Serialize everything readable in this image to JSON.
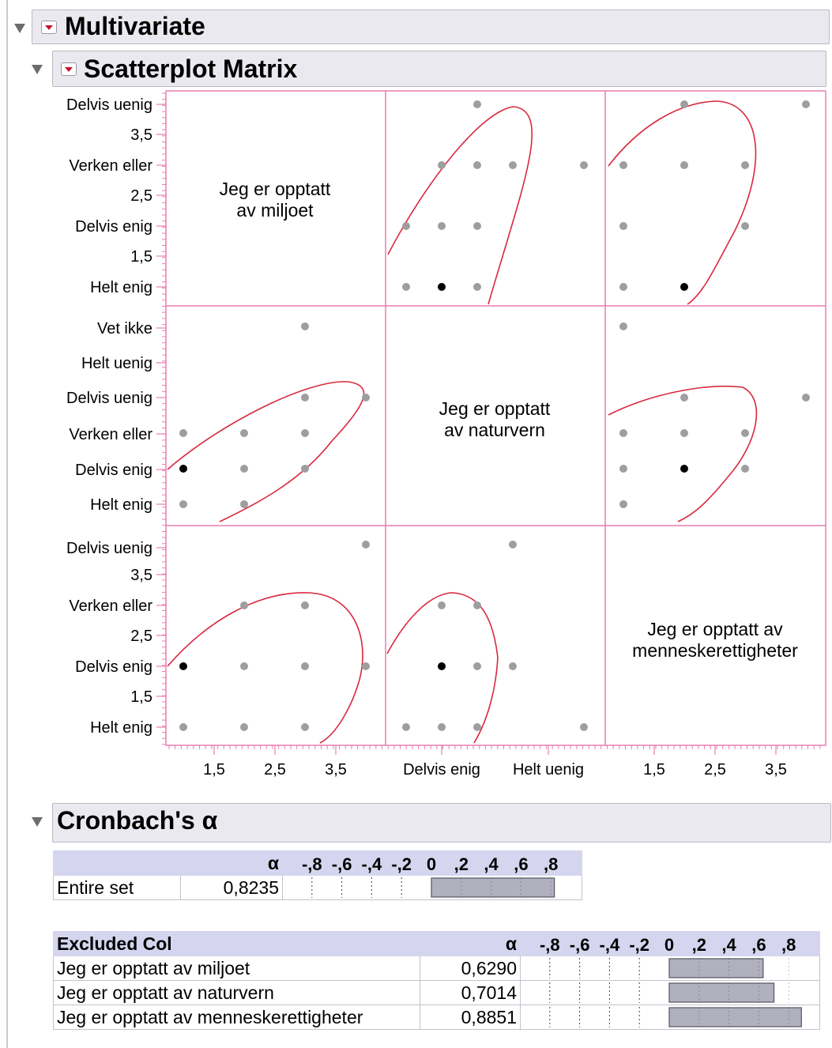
{
  "multivariate": {
    "title": "Multivariate"
  },
  "scatterplot": {
    "title": "Scatterplot Matrix",
    "variables": [
      "Jeg er opptatt av miljoet",
      "Jeg er opptatt av naturvern",
      "Jeg er opptatt av menneskerettigheter"
    ],
    "diag_labels": [
      [
        "Jeg er opptatt",
        "av miljoet"
      ],
      [
        "Jeg er opptatt",
        "av naturvern"
      ],
      [
        "Jeg er opptatt av",
        "menneskerettigheter"
      ]
    ],
    "row_ticks": [
      [
        "Delvis uenig",
        "3,5",
        "Verken eller",
        "2,5",
        "Delvis enig",
        "1,5",
        "Helt enig"
      ],
      [
        "Vet ikke",
        "Helt uenig",
        "Delvis uenig",
        "Verken eller",
        "Delvis enig",
        "Helt enig"
      ],
      [
        "Delvis uenig",
        "3,5",
        "Verken eller",
        "2,5",
        "Delvis enig",
        "1,5",
        "Helt enig"
      ]
    ],
    "col_ticks": [
      [
        "1,5",
        "2,5",
        "3,5"
      ],
      [
        "Delvis enig",
        "Helt uenig"
      ],
      [
        "1,5",
        "2,5",
        "3,5"
      ]
    ],
    "colors": {
      "grid": "#e87fb0",
      "ellipse": "#d9283d",
      "point": "#9e9e9e",
      "point_dark": "#000000"
    }
  },
  "chart_data": {
    "type": "scatter",
    "cells": [
      {
        "row": 0,
        "col": 1,
        "points": [
          [
            1,
            1
          ],
          [
            2,
            1
          ],
          [
            3,
            1
          ],
          [
            1,
            2
          ],
          [
            2,
            2
          ],
          [
            3,
            2
          ],
          [
            2,
            3
          ],
          [
            3,
            3
          ],
          [
            4,
            3
          ],
          [
            5,
            3
          ],
          [
            3,
            4
          ]
        ],
        "dark": [
          [
            2,
            1
          ]
        ]
      },
      {
        "row": 0,
        "col": 2,
        "points": [
          [
            1,
            1
          ],
          [
            2,
            1
          ],
          [
            1,
            2
          ],
          [
            3,
            2
          ],
          [
            1,
            3
          ],
          [
            2,
            3
          ],
          [
            3,
            3
          ],
          [
            2,
            4
          ],
          [
            4,
            4
          ]
        ],
        "dark": [
          [
            2,
            1
          ]
        ]
      },
      {
        "row": 1,
        "col": 0,
        "points": [
          [
            1,
            1
          ],
          [
            2,
            1
          ],
          [
            1,
            2
          ],
          [
            2,
            2
          ],
          [
            3,
            2
          ],
          [
            1,
            3
          ],
          [
            2,
            3
          ],
          [
            3,
            3
          ],
          [
            3,
            4
          ],
          [
            4,
            4
          ],
          [
            3,
            6
          ]
        ],
        "dark": [
          [
            1,
            2
          ]
        ]
      },
      {
        "row": 1,
        "col": 2,
        "points": [
          [
            1,
            1
          ],
          [
            1,
            2
          ],
          [
            2,
            2
          ],
          [
            3,
            2
          ],
          [
            1,
            3
          ],
          [
            2,
            3
          ],
          [
            3,
            3
          ],
          [
            2,
            4
          ],
          [
            4,
            4
          ],
          [
            1,
            6
          ]
        ],
        "dark": [
          [
            2,
            2
          ]
        ]
      },
      {
        "row": 2,
        "col": 0,
        "points": [
          [
            1,
            1
          ],
          [
            2,
            1
          ],
          [
            3,
            1
          ],
          [
            1,
            2
          ],
          [
            2,
            2
          ],
          [
            3,
            2
          ],
          [
            4,
            2
          ],
          [
            2,
            3
          ],
          [
            3,
            3
          ],
          [
            4,
            4
          ]
        ],
        "dark": [
          [
            1,
            2
          ]
        ]
      },
      {
        "row": 2,
        "col": 1,
        "points": [
          [
            1,
            1
          ],
          [
            2,
            1
          ],
          [
            3,
            1
          ],
          [
            5,
            1
          ],
          [
            2,
            2
          ],
          [
            3,
            2
          ],
          [
            4,
            2
          ],
          [
            2,
            3
          ],
          [
            3,
            3
          ],
          [
            4,
            4
          ]
        ],
        "dark": [
          [
            2,
            2
          ]
        ]
      }
    ]
  },
  "cronbach": {
    "title": "Cronbach's α",
    "alpha_header": "α",
    "axis_labels": [
      "-,8",
      "-,6",
      "-,4",
      "-,2",
      "0",
      ",2",
      ",4",
      ",6",
      ",8"
    ],
    "entire": {
      "label": "Entire set",
      "value": "0,8235",
      "alpha": 0.8235
    },
    "excluded_header": "Excluded Col",
    "excluded_rows": [
      {
        "label": "Jeg er opptatt av miljoet",
        "value": "0,6290",
        "alpha": 0.629
      },
      {
        "label": "Jeg er opptatt av naturvern",
        "value": "0,7014",
        "alpha": 0.7014
      },
      {
        "label": "Jeg er opptatt av menneskerettigheter",
        "value": "0,8851",
        "alpha": 0.8851
      }
    ],
    "colors": {
      "bar": "#b0b0bf",
      "bar_border": "#55555f",
      "header_bg": "#d5d5ef"
    }
  }
}
